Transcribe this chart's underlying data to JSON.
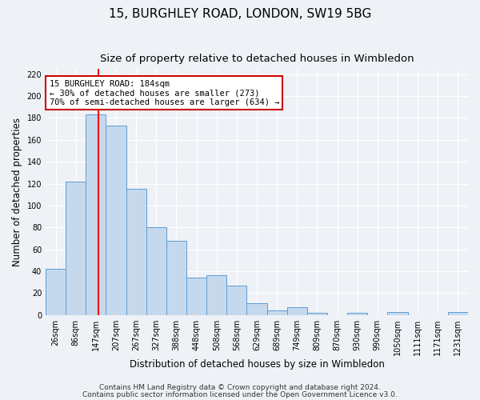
{
  "title1": "15, BURGHLEY ROAD, LONDON, SW19 5BG",
  "title2": "Size of property relative to detached houses in Wimbledon",
  "xlabel": "Distribution of detached houses by size in Wimbledon",
  "ylabel": "Number of detached properties",
  "bar_labels": [
    "26sqm",
    "86sqm",
    "147sqm",
    "207sqm",
    "267sqm",
    "327sqm",
    "388sqm",
    "448sqm",
    "508sqm",
    "568sqm",
    "629sqm",
    "689sqm",
    "749sqm",
    "809sqm",
    "870sqm",
    "930sqm",
    "990sqm",
    "1050sqm",
    "1111sqm",
    "1171sqm",
    "1231sqm"
  ],
  "bar_values": [
    42,
    122,
    183,
    173,
    115,
    80,
    68,
    34,
    36,
    27,
    11,
    4,
    7,
    2,
    0,
    2,
    0,
    3,
    0,
    0,
    3
  ],
  "bar_color": "#c6d9ec",
  "bar_edge_color": "#5b9bd5",
  "red_line_x": 2.617,
  "annotation_box_text": "15 BURGHLEY ROAD: 184sqm\n← 30% of detached houses are smaller (273)\n70% of semi-detached houses are larger (634) →",
  "annotation_box_color": "#ffffff",
  "annotation_box_edge_color": "#cc0000",
  "ylim": [
    0,
    225
  ],
  "yticks": [
    0,
    20,
    40,
    60,
    80,
    100,
    120,
    140,
    160,
    180,
    200,
    220
  ],
  "footer1": "Contains HM Land Registry data © Crown copyright and database right 2024.",
  "footer2": "Contains public sector information licensed under the Open Government Licence v3.0.",
  "bg_color": "#eef2f7",
  "plot_bg_color": "#eef2f7",
  "grid_color": "#ffffff",
  "title_fontsize": 11,
  "subtitle_fontsize": 9.5,
  "axis_label_fontsize": 8.5,
  "tick_fontsize": 7,
  "footer_fontsize": 6.5
}
